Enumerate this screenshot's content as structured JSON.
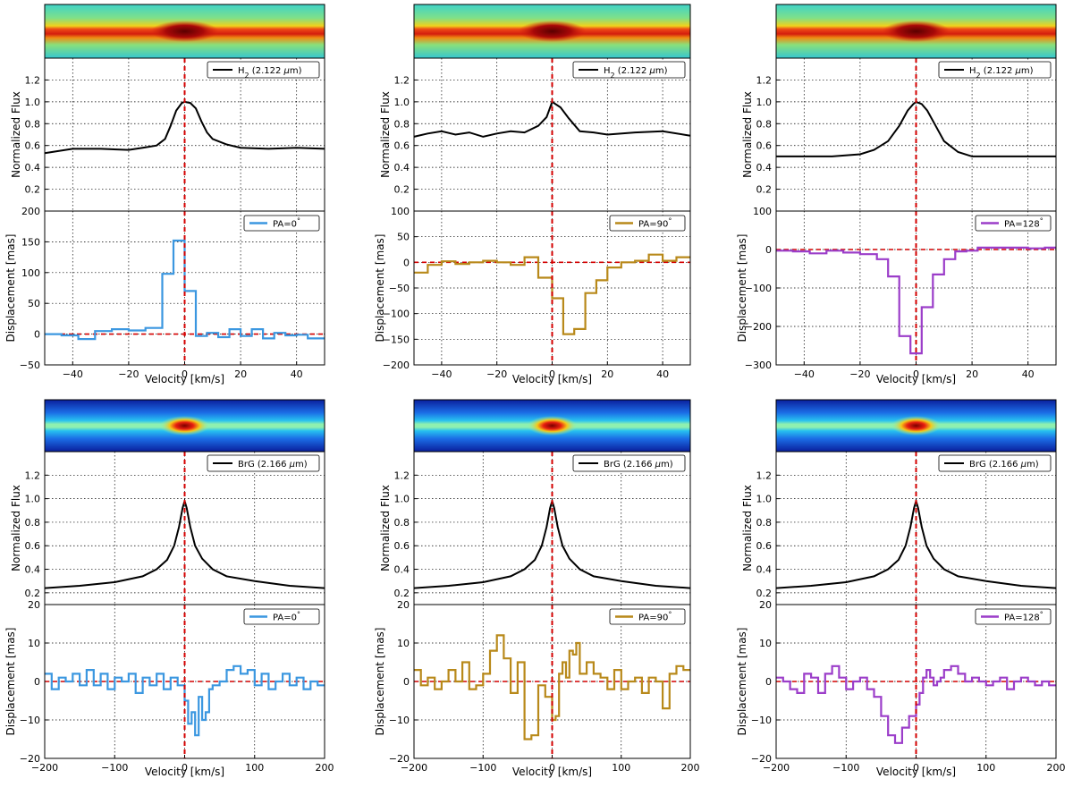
{
  "chart_data": [
    {
      "type": "line",
      "row": 0,
      "col": 0,
      "legend_flux": "H$_2$ (2.122 $\\mu$m)",
      "legend_disp": "PA=0$^\\circ$",
      "disp_color": "#3b97e0",
      "xlabel": "Velocity [km/s]",
      "ylabel_flux": "Normalized Flux",
      "ylabel_disp": "Displacement [mas]",
      "xlim": [
        -50,
        50
      ],
      "xticks": [
        -40,
        -20,
        0,
        20,
        40
      ],
      "flux_ylim": [
        0,
        1.4
      ],
      "flux_yticks": [
        "0.2",
        "0.4",
        "0.6",
        "0.8",
        "1.0",
        "1.2"
      ],
      "disp_ylim": [
        -50,
        200
      ],
      "disp_yticks": [
        "-50",
        "0",
        "50",
        "100",
        "150",
        "200"
      ],
      "flux": {
        "v": [
          -50,
          -40,
          -30,
          -20,
          -15,
          -10,
          -7,
          -5,
          -3,
          -1,
          0,
          2,
          4,
          6,
          8,
          10,
          15,
          20,
          30,
          40,
          50
        ],
        "f": [
          0.53,
          0.57,
          0.57,
          0.56,
          0.58,
          0.6,
          0.66,
          0.78,
          0.92,
          0.99,
          1.0,
          0.99,
          0.94,
          0.82,
          0.72,
          0.66,
          0.61,
          0.58,
          0.57,
          0.58,
          0.57
        ]
      },
      "disp": {
        "edges": [
          -50,
          -44,
          -38,
          -32,
          -26,
          -20,
          -14,
          -8,
          -4,
          0,
          4,
          8,
          12,
          16,
          20,
          24,
          28,
          32,
          36,
          40,
          44,
          50
        ],
        "vals": [
          0,
          -2,
          -8,
          5,
          8,
          6,
          10,
          98,
          152,
          70,
          -3,
          2,
          -5,
          8,
          -3,
          8,
          -7,
          2,
          -2,
          -1,
          -7
        ]
      },
      "grid": true,
      "legend_position": "top-right"
    },
    {
      "type": "line",
      "row": 0,
      "col": 1,
      "legend_flux": "H$_2$ (2.122 $\\mu$m)",
      "legend_disp": "PA=90$^\\circ$",
      "disp_color": "#b8891a",
      "xlabel": "Velocity [km/s]",
      "ylabel_flux": "Normalized Flux",
      "ylabel_disp": "Displacement [mas]",
      "xlim": [
        -50,
        50
      ],
      "xticks": [
        -40,
        -20,
        0,
        20,
        40
      ],
      "flux_ylim": [
        0,
        1.4
      ],
      "flux_yticks": [
        "0.2",
        "0.4",
        "0.6",
        "0.8",
        "1.0",
        "1.2"
      ],
      "disp_ylim": [
        -200,
        100
      ],
      "disp_yticks": [
        "-200",
        "-150",
        "-100",
        "-50",
        "0",
        "50",
        "100"
      ],
      "flux": {
        "v": [
          -50,
          -45,
          -40,
          -35,
          -30,
          -25,
          -20,
          -15,
          -10,
          -5,
          -2,
          0,
          3,
          6,
          10,
          15,
          20,
          30,
          40,
          50
        ],
        "f": [
          0.68,
          0.71,
          0.73,
          0.7,
          0.72,
          0.68,
          0.71,
          0.73,
          0.72,
          0.78,
          0.86,
          1.0,
          0.95,
          0.85,
          0.73,
          0.72,
          0.7,
          0.72,
          0.73,
          0.69
        ]
      },
      "disp": {
        "edges": [
          -50,
          -45,
          -40,
          -35,
          -30,
          -25,
          -20,
          -15,
          -10,
          -5,
          0,
          4,
          8,
          12,
          16,
          20,
          25,
          30,
          35,
          40,
          45,
          50
        ],
        "vals": [
          -20,
          -5,
          2,
          -3,
          0,
          3,
          0,
          -5,
          10,
          -30,
          -70,
          -140,
          -130,
          -60,
          -35,
          -10,
          0,
          3,
          15,
          3,
          10
        ]
      },
      "grid": true,
      "legend_position": "top-right"
    },
    {
      "type": "line",
      "row": 0,
      "col": 2,
      "legend_flux": "H$_2$ (2.122 $\\mu$m)",
      "legend_disp": "PA=128$^\\circ$",
      "disp_color": "#9b3dc9",
      "xlabel": "Velocity [km/s]",
      "ylabel_flux": "Normalized Flux",
      "ylabel_disp": "Displacement [mas]",
      "xlim": [
        -50,
        50
      ],
      "xticks": [
        -40,
        -20,
        0,
        20,
        40
      ],
      "flux_ylim": [
        0,
        1.4
      ],
      "flux_yticks": [
        "0.2",
        "0.4",
        "0.6",
        "0.8",
        "1.0",
        "1.2"
      ],
      "disp_ylim": [
        -300,
        100
      ],
      "disp_yticks": [
        "-300",
        "-200",
        "-100",
        "0",
        "100"
      ],
      "flux": {
        "v": [
          -50,
          -40,
          -30,
          -20,
          -15,
          -10,
          -6,
          -3,
          -1,
          0,
          2,
          4,
          7,
          10,
          15,
          20,
          30,
          40,
          50
        ],
        "f": [
          0.5,
          0.5,
          0.5,
          0.52,
          0.56,
          0.64,
          0.78,
          0.92,
          0.98,
          1.0,
          0.98,
          0.92,
          0.78,
          0.64,
          0.54,
          0.5,
          0.5,
          0.5,
          0.5
        ]
      },
      "disp": {
        "edges": [
          -50,
          -44,
          -38,
          -32,
          -26,
          -20,
          -14,
          -10,
          -6,
          -2,
          2,
          6,
          10,
          14,
          18,
          22,
          28,
          34,
          40,
          46,
          50
        ],
        "vals": [
          -3,
          -5,
          -10,
          -3,
          -8,
          -12,
          -25,
          -70,
          -225,
          -270,
          -150,
          -65,
          -25,
          -5,
          -3,
          5,
          5,
          5,
          3,
          5
        ]
      },
      "grid": true,
      "legend_position": "top-right"
    },
    {
      "type": "line",
      "row": 1,
      "col": 0,
      "legend_flux": "BrG (2.166 $\\mu$m)",
      "legend_disp": "PA=0$^\\circ$",
      "disp_color": "#3b97e0",
      "xlabel": "Velocity [km/s]",
      "ylabel_flux": "Normalized Flux",
      "ylabel_disp": "Displacement [mas]",
      "xlim": [
        -200,
        200
      ],
      "xticks": [
        -200,
        -100,
        0,
        100,
        200
      ],
      "flux_ylim": [
        0.1,
        1.4
      ],
      "flux_yticks": [
        "0.2",
        "0.4",
        "0.6",
        "0.8",
        "1.0",
        "1.2"
      ],
      "disp_ylim": [
        -20,
        20
      ],
      "disp_yticks": [
        "-20",
        "-10",
        "0",
        "10",
        "20"
      ],
      "flux": {
        "v": [
          -200,
          -150,
          -100,
          -60,
          -40,
          -25,
          -15,
          -8,
          -3,
          0,
          3,
          8,
          15,
          25,
          40,
          60,
          100,
          150,
          200
        ],
        "f": [
          0.24,
          0.26,
          0.29,
          0.34,
          0.4,
          0.48,
          0.6,
          0.76,
          0.92,
          0.98,
          0.92,
          0.76,
          0.6,
          0.49,
          0.4,
          0.34,
          0.3,
          0.26,
          0.24
        ]
      },
      "disp": {
        "edges": [
          -200,
          -190,
          -180,
          -170,
          -160,
          -150,
          -140,
          -130,
          -120,
          -110,
          -100,
          -90,
          -80,
          -70,
          -60,
          -50,
          -40,
          -30,
          -20,
          -10,
          0,
          5,
          10,
          15,
          20,
          25,
          30,
          35,
          40,
          50,
          60,
          70,
          80,
          90,
          100,
          110,
          120,
          130,
          140,
          150,
          160,
          170,
          180,
          190,
          200
        ],
        "vals": [
          2,
          -2,
          1,
          0,
          2,
          -1,
          3,
          -1,
          2,
          -2,
          1,
          0,
          2,
          -3,
          1,
          -1,
          2,
          -2,
          1,
          -1,
          -5,
          -11,
          -8,
          -14,
          -4,
          -10,
          -8,
          -2,
          -1,
          0,
          3,
          4,
          2,
          3,
          -1,
          2,
          -2,
          0,
          2,
          -1,
          1,
          -2,
          0,
          -1
        ]
      },
      "grid": true,
      "legend_position": "top-right"
    },
    {
      "type": "line",
      "row": 1,
      "col": 1,
      "legend_flux": "BrG (2.166 $\\mu$m)",
      "legend_disp": "PA=90$^\\circ$",
      "disp_color": "#b8891a",
      "xlabel": "Velocity [km/s]",
      "ylabel_flux": "Normalized Flux",
      "ylabel_disp": "Displacement [mas]",
      "xlim": [
        -200,
        200
      ],
      "xticks": [
        -200,
        -100,
        0,
        100,
        200
      ],
      "flux_ylim": [
        0.1,
        1.4
      ],
      "flux_yticks": [
        "0.2",
        "0.4",
        "0.6",
        "0.8",
        "1.0",
        "1.2"
      ],
      "disp_ylim": [
        -20,
        20
      ],
      "disp_yticks": [
        "-20",
        "-10",
        "0",
        "10",
        "20"
      ],
      "flux": {
        "v": [
          -200,
          -150,
          -100,
          -60,
          -40,
          -25,
          -15,
          -8,
          -3,
          0,
          3,
          8,
          15,
          25,
          40,
          60,
          100,
          150,
          200
        ],
        "f": [
          0.24,
          0.26,
          0.29,
          0.34,
          0.4,
          0.48,
          0.6,
          0.76,
          0.92,
          0.98,
          0.92,
          0.76,
          0.6,
          0.49,
          0.4,
          0.34,
          0.3,
          0.26,
          0.24
        ]
      },
      "disp": {
        "edges": [
          -200,
          -190,
          -180,
          -170,
          -160,
          -150,
          -140,
          -130,
          -120,
          -110,
          -100,
          -90,
          -80,
          -70,
          -60,
          -50,
          -40,
          -30,
          -20,
          -10,
          0,
          5,
          10,
          15,
          20,
          25,
          30,
          35,
          40,
          50,
          60,
          70,
          80,
          90,
          100,
          110,
          120,
          130,
          140,
          150,
          160,
          170,
          180,
          190,
          200
        ],
        "vals": [
          3,
          -1,
          1,
          -2,
          0,
          3,
          0,
          5,
          -2,
          -1,
          2,
          8,
          12,
          6,
          -3,
          5,
          -15,
          -14,
          -1,
          -4,
          -10,
          -9,
          2,
          5,
          1,
          8,
          7,
          10,
          2,
          5,
          2,
          1,
          -2,
          3,
          -2,
          0,
          1,
          -3,
          1,
          0,
          -7,
          2,
          4,
          3
        ]
      },
      "grid": true,
      "legend_position": "top-right"
    },
    {
      "type": "line",
      "row": 1,
      "col": 2,
      "legend_flux": "BrG (2.166 $\\mu$m)",
      "legend_disp": "PA=128$^\\circ$",
      "disp_color": "#9b3dc9",
      "xlabel": "Velocity [km/s]",
      "ylabel_flux": "Normalized Flux",
      "ylabel_disp": "Displacement [mas]",
      "xlim": [
        -200,
        200
      ],
      "xticks": [
        -200,
        -100,
        0,
        100,
        200
      ],
      "flux_ylim": [
        0.1,
        1.4
      ],
      "flux_yticks": [
        "0.2",
        "0.4",
        "0.6",
        "0.8",
        "1.0",
        "1.2"
      ],
      "disp_ylim": [
        -20,
        20
      ],
      "disp_yticks": [
        "-20",
        "-10",
        "0",
        "10",
        "20"
      ],
      "flux": {
        "v": [
          -200,
          -150,
          -100,
          -60,
          -40,
          -25,
          -15,
          -8,
          -3,
          0,
          3,
          8,
          15,
          25,
          40,
          60,
          100,
          150,
          200
        ],
        "f": [
          0.24,
          0.26,
          0.29,
          0.34,
          0.4,
          0.48,
          0.6,
          0.76,
          0.92,
          0.98,
          0.92,
          0.76,
          0.6,
          0.49,
          0.4,
          0.34,
          0.3,
          0.26,
          0.24
        ]
      },
      "disp": {
        "edges": [
          -200,
          -190,
          -180,
          -170,
          -160,
          -150,
          -140,
          -130,
          -120,
          -110,
          -100,
          -90,
          -80,
          -70,
          -60,
          -50,
          -40,
          -30,
          -20,
          -10,
          0,
          5,
          10,
          15,
          20,
          25,
          30,
          35,
          40,
          50,
          60,
          70,
          80,
          90,
          100,
          110,
          120,
          130,
          140,
          150,
          160,
          170,
          180,
          190,
          200
        ],
        "vals": [
          1,
          0,
          -2,
          -3,
          2,
          1,
          -3,
          2,
          4,
          1,
          -2,
          0,
          1,
          -2,
          -4,
          -9,
          -14,
          -16,
          -12,
          -9,
          -6,
          -3,
          1,
          3,
          1,
          -1,
          0,
          1,
          3,
          4,
          2,
          0,
          1,
          0,
          -1,
          0,
          1,
          -2,
          0,
          1,
          0,
          -1,
          0,
          -1
        ]
      },
      "grid": true,
      "legend_position": "top-right"
    }
  ]
}
